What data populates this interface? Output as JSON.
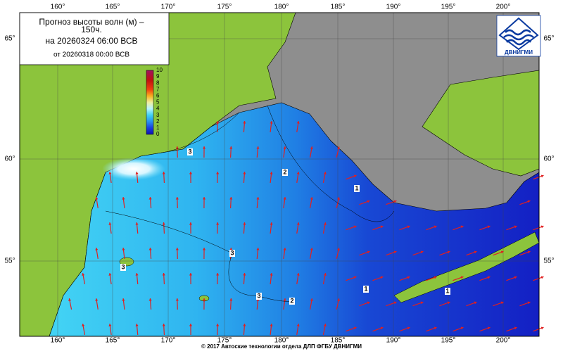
{
  "header": {
    "title_lines": [
      "Прогноз высоты волн (м) –",
      "150ч."
    ],
    "forecast_time": "на 20260324 06:00 ВСВ",
    "issued": "от 20260318 00:00 ВСВ"
  },
  "logo": {
    "text": "ДВНИГМИ"
  },
  "colorbar": {
    "labels": [
      "0",
      "1",
      "2",
      "3",
      "4",
      "5",
      "6",
      "7",
      "8",
      "9",
      "10"
    ]
  },
  "axes": {
    "lon_labels": [
      "160°",
      "165°",
      "170°",
      "175°",
      "180°",
      "185°",
      "190°",
      "195°",
      "200°"
    ],
    "lat_labels": [
      "65°",
      "60°",
      "55°"
    ]
  },
  "contour_labels": [
    "3",
    "2",
    "1",
    "3",
    "3",
    "3",
    "2",
    "1",
    "1"
  ],
  "footer": "© 2017 Автоские технологии отдела ДЛП ФГБУ ДВНИГМИ"
}
